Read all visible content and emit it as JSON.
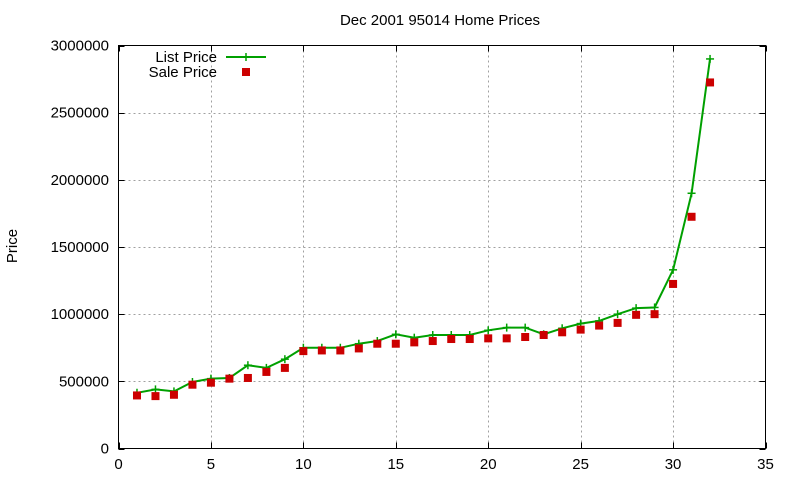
{
  "chart_data": {
    "type": "line",
    "title": "Dec 2001 95014 Home Prices",
    "xlabel": "",
    "ylabel": "Price",
    "xlim": [
      0,
      35
    ],
    "ylim": [
      0,
      3000000
    ],
    "grid": true,
    "legend_position": "top-left",
    "x_ticks": [
      0,
      5,
      10,
      15,
      20,
      25,
      30,
      35
    ],
    "y_ticks": [
      0,
      500000,
      1000000,
      1500000,
      2000000,
      2500000,
      3000000
    ],
    "x_tick_labels": [
      "0",
      "5",
      "10",
      "15",
      "20",
      "25",
      "30",
      "35"
    ],
    "y_tick_labels": [
      "0",
      "500000",
      "1000000",
      "1500000",
      "2000000",
      "2500000",
      "3000000"
    ],
    "series": [
      {
        "name": "List Price",
        "color": "#00a000",
        "style": "linespoints",
        "marker": "plus",
        "x": [
          1,
          2,
          3,
          4,
          5,
          6,
          7,
          8,
          9,
          10,
          11,
          12,
          13,
          14,
          15,
          16,
          17,
          18,
          19,
          20,
          21,
          22,
          23,
          24,
          25,
          26,
          27,
          28,
          29,
          30,
          31,
          32
        ],
        "y": [
          415000,
          440000,
          425000,
          495000,
          520000,
          525000,
          620000,
          600000,
          665000,
          750000,
          750000,
          750000,
          780000,
          800000,
          850000,
          825000,
          845000,
          845000,
          845000,
          880000,
          900000,
          900000,
          850000,
          895000,
          930000,
          950000,
          1000000,
          1045000,
          1050000,
          1330000,
          1900000,
          2900000
        ]
      },
      {
        "name": "Sale Price",
        "color": "#cc0000",
        "style": "points",
        "marker": "square",
        "x": [
          1,
          2,
          3,
          4,
          5,
          6,
          7,
          8,
          9,
          10,
          11,
          12,
          13,
          14,
          15,
          16,
          17,
          18,
          19,
          20,
          21,
          22,
          23,
          24,
          25,
          26,
          27,
          28,
          29,
          30,
          31,
          32
        ],
        "y": [
          395000,
          390000,
          400000,
          475000,
          490000,
          520000,
          525000,
          570000,
          600000,
          725000,
          730000,
          730000,
          745000,
          780000,
          780000,
          790000,
          800000,
          815000,
          815000,
          820000,
          820000,
          830000,
          845000,
          865000,
          885000,
          915000,
          935000,
          995000,
          1000000,
          1225000,
          1725000,
          2725000
        ]
      }
    ]
  }
}
